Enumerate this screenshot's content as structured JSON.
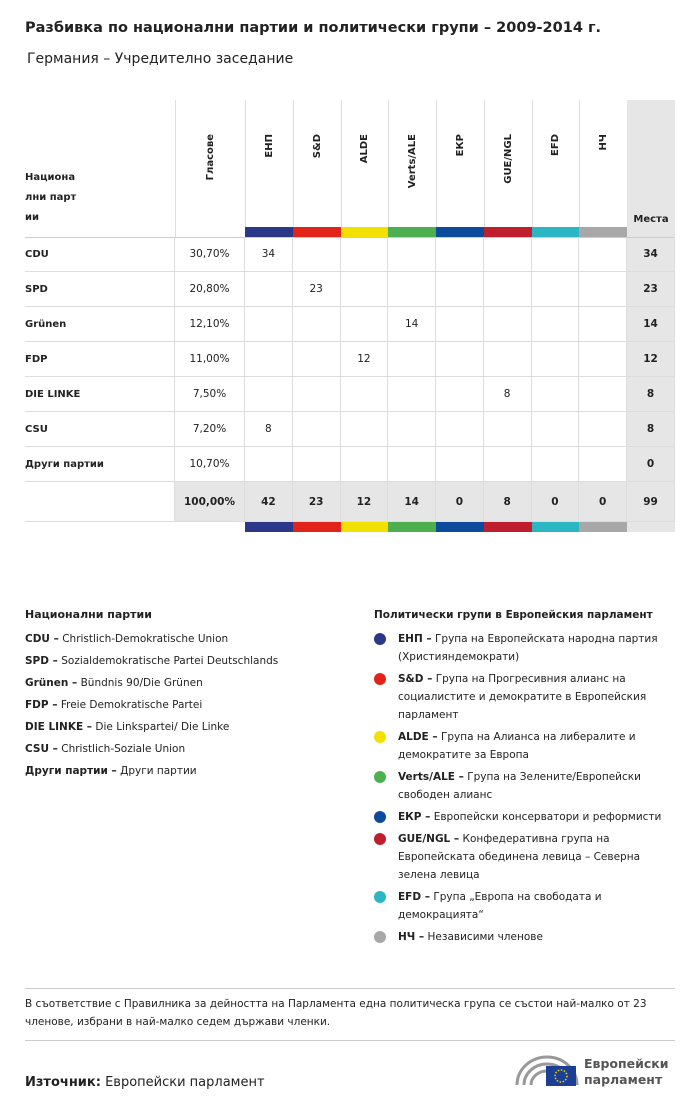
{
  "header": {
    "title": "Разбивка по национални партии и политически групи – 2009-2014 г.",
    "subtitle": "Германия – Учредително заседание"
  },
  "table": {
    "party_header": "Национални партии",
    "votes_header": "Гласове",
    "seats_header": "Места",
    "groups": [
      {
        "name": "ЕНП",
        "color": "#2b3889"
      },
      {
        "name": "S&D",
        "color": "#e2231a"
      },
      {
        "name": "ALDE",
        "color": "#f2e100"
      },
      {
        "name": "Verts/ALE",
        "color": "#4daf4f"
      },
      {
        "name": "ЕКР",
        "color": "#0c4a9c"
      },
      {
        "name": "GUE/NGL",
        "color": "#be1e2d"
      },
      {
        "name": "EFD",
        "color": "#2bb6c3"
      },
      {
        "name": "НЧ",
        "color": "#a8a8a8"
      }
    ],
    "rows": [
      {
        "party": "CDU",
        "votes": "30,70%",
        "group_seats": [
          34,
          null,
          null,
          null,
          null,
          null,
          null,
          null
        ],
        "seats": 34
      },
      {
        "party": "SPD",
        "votes": "20,80%",
        "group_seats": [
          null,
          23,
          null,
          null,
          null,
          null,
          null,
          null
        ],
        "seats": 23
      },
      {
        "party": "Grünen",
        "votes": "12,10%",
        "group_seats": [
          null,
          null,
          null,
          14,
          null,
          null,
          null,
          null
        ],
        "seats": 14
      },
      {
        "party": "FDP",
        "votes": "11,00%",
        "group_seats": [
          null,
          null,
          12,
          null,
          null,
          null,
          null,
          null
        ],
        "seats": 12
      },
      {
        "party": "DIE LINKE",
        "votes": "7,50%",
        "group_seats": [
          null,
          null,
          null,
          null,
          null,
          8,
          null,
          null
        ],
        "seats": 8
      },
      {
        "party": "CSU",
        "votes": "7,20%",
        "group_seats": [
          8,
          null,
          null,
          null,
          null,
          null,
          null,
          null
        ],
        "seats": 8
      },
      {
        "party": "Други партии",
        "votes": "10,70%",
        "group_seats": [
          null,
          null,
          null,
          null,
          null,
          null,
          null,
          null
        ],
        "seats": 0
      }
    ],
    "total": {
      "votes": "100,00%",
      "group_seats": [
        42,
        23,
        12,
        14,
        0,
        8,
        0,
        0
      ],
      "seats": 99
    }
  },
  "legend": {
    "parties_title": "Национални партии",
    "parties": [
      {
        "abbr": "CDU –",
        "name": "Christlich-Demokratische Union"
      },
      {
        "abbr": "SPD –",
        "name": "Sozialdemokratische Partei Deutschlands"
      },
      {
        "abbr": "Grünen –",
        "name": "Bündnis 90/Die Grünen"
      },
      {
        "abbr": "FDP –",
        "name": "Freie Demokratische Partei"
      },
      {
        "abbr": "DIE LINKE –",
        "name": "Die Linkspartei/ Die Linke"
      },
      {
        "abbr": "CSU –",
        "name": "Christlich-Soziale Union"
      },
      {
        "abbr": "Други партии –",
        "name": "Други партии"
      }
    ],
    "groups_title": "Политически групи в Европейския парламент",
    "groups": [
      {
        "abbr": "ЕНП –",
        "name": "Група на Европейската народна партия (Християндемократи)"
      },
      {
        "abbr": "S&D –",
        "name": "Група на Прогресивния алианс на социалистите и демократите в Европейския парламент"
      },
      {
        "abbr": "ALDE –",
        "name": "Група на Алианса на либералите и демократите за Европа"
      },
      {
        "abbr": "Verts/ALE –",
        "name": "Група на Зелените/Европейски свободен алианс"
      },
      {
        "abbr": "ЕКР –",
        "name": "Европейски консерватори и реформисти"
      },
      {
        "abbr": "GUE/NGL –",
        "name": "Конфедеративна група на Европейската обединена левица – Северна зелена левица"
      },
      {
        "abbr": "EFD –",
        "name": "Група „Европа на свободата и демокрацията“"
      },
      {
        "abbr": "НЧ –",
        "name": "Независими членове"
      }
    ]
  },
  "note": "В съответствие с Правилника за дейността на Парламента една политическа група се състои най-малко от 23 членове, избрани в най-малко седем държави членки.",
  "source": {
    "label": "Източник:",
    "text": "Европейски парламент"
  },
  "logo": [
    "Европейски",
    "парламент"
  ]
}
